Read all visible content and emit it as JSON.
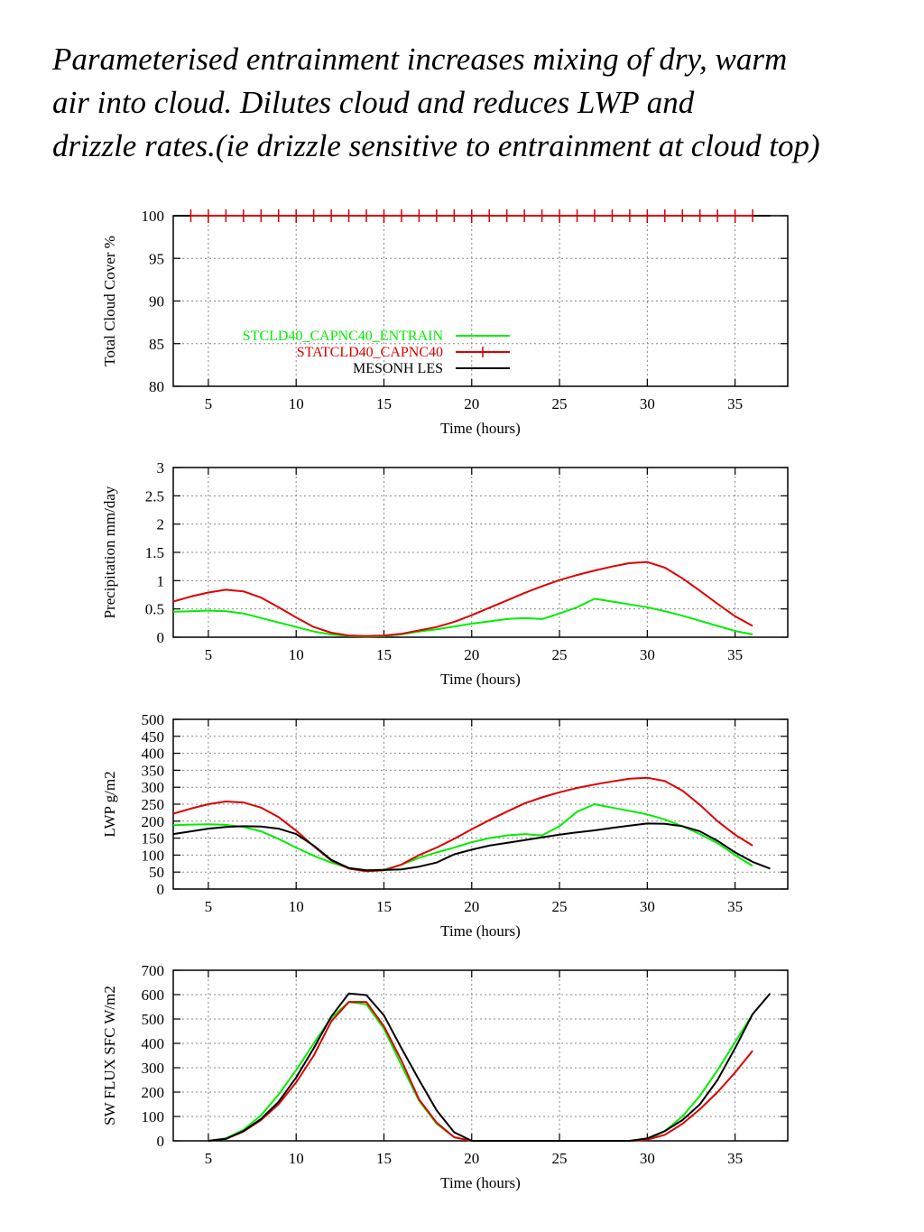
{
  "caption": {
    "line1": "Parameterised entrainment increases mixing of dry, warm",
    "line2": "air into cloud. Dilutes cloud and reduces LWP and",
    "line3": "drizzle rates.(ie drizzle sensitive to entrainment at cloud top)"
  },
  "colors": {
    "entrain": "#00ee00",
    "statcld": "#dd0000",
    "les": "#000000",
    "grid": "#888888"
  },
  "chart_data": [
    {
      "type": "line",
      "ylabel": "Total Cloud Cover %",
      "xlabel": "Time (hours)",
      "xlim": [
        3,
        38
      ],
      "ylim": [
        80,
        100
      ],
      "xticks": [
        5,
        10,
        15,
        20,
        25,
        30,
        35
      ],
      "yticks": [
        80,
        85,
        90,
        95,
        100
      ],
      "grid": true,
      "legend": {
        "position": "left-middle",
        "entries": [
          {
            "series": "STCLD40_CAPNC40_ENTRAIN",
            "color": "#00ee00",
            "marker": false
          },
          {
            "series": "STATCLD40_CAPNC40",
            "color": "#dd0000",
            "marker": true
          },
          {
            "series": "MESONH LES",
            "color": "#000000",
            "marker": false
          }
        ]
      },
      "series": [
        {
          "name": "STCLD40_CAPNC40_ENTRAIN",
          "color": "#00ee00",
          "x": [
            3,
            37
          ],
          "y": [
            100,
            100
          ]
        },
        {
          "name": "MESONH LES",
          "color": "#000000",
          "x": [
            3,
            37
          ],
          "y": [
            100,
            100
          ]
        },
        {
          "name": "STATCLD40_CAPNC40",
          "color": "#dd0000",
          "marker": "plus",
          "x": [
            4,
            5,
            6,
            7,
            8,
            9,
            10,
            11,
            12,
            13,
            14,
            15,
            16,
            17,
            18,
            19,
            20,
            21,
            22,
            23,
            24,
            25,
            26,
            27,
            28,
            29,
            30,
            31,
            32,
            33,
            34,
            35,
            36
          ],
          "y": [
            100,
            100,
            100,
            100,
            100,
            100,
            100,
            100,
            100,
            100,
            100,
            100,
            100,
            100,
            100,
            100,
            100,
            100,
            100,
            100,
            100,
            100,
            100,
            100,
            100,
            100,
            100,
            100,
            100,
            100,
            100,
            100,
            100
          ]
        }
      ]
    },
    {
      "type": "line",
      "ylabel": "Precipitation mm/day",
      "xlabel": "Time (hours)",
      "xlim": [
        3,
        38
      ],
      "ylim": [
        0,
        3
      ],
      "xticks": [
        5,
        10,
        15,
        20,
        25,
        30,
        35
      ],
      "yticks": [
        0,
        0.5,
        1,
        1.5,
        2,
        2.5,
        3
      ],
      "grid": true,
      "series": [
        {
          "name": "STCLD40_CAPNC40_ENTRAIN",
          "color": "#00ee00",
          "x": [
            3,
            4,
            5,
            6,
            7,
            8,
            9,
            10,
            11,
            12,
            13,
            14,
            15,
            16,
            17,
            18,
            19,
            20,
            21,
            22,
            23,
            24,
            25,
            26,
            27,
            28,
            29,
            30,
            31,
            32,
            33,
            34,
            35,
            36
          ],
          "y": [
            0.45,
            0.46,
            0.47,
            0.46,
            0.42,
            0.34,
            0.26,
            0.18,
            0.1,
            0.05,
            0.02,
            0.01,
            0.02,
            0.05,
            0.1,
            0.14,
            0.19,
            0.24,
            0.28,
            0.32,
            0.34,
            0.32,
            0.42,
            0.53,
            0.68,
            0.63,
            0.58,
            0.53,
            0.46,
            0.38,
            0.29,
            0.2,
            0.11,
            0.05
          ]
        },
        {
          "name": "STATCLD40_CAPNC40",
          "color": "#dd0000",
          "x": [
            3,
            4,
            5,
            6,
            7,
            8,
            9,
            10,
            11,
            12,
            13,
            14,
            15,
            16,
            17,
            18,
            19,
            20,
            21,
            22,
            23,
            24,
            25,
            26,
            27,
            28,
            29,
            30,
            31,
            32,
            33,
            34,
            35,
            36
          ],
          "y": [
            0.63,
            0.72,
            0.79,
            0.84,
            0.81,
            0.7,
            0.53,
            0.35,
            0.18,
            0.08,
            0.03,
            0.02,
            0.03,
            0.06,
            0.12,
            0.18,
            0.27,
            0.39,
            0.52,
            0.65,
            0.78,
            0.9,
            1.01,
            1.1,
            1.18,
            1.25,
            1.31,
            1.33,
            1.23,
            1.04,
            0.82,
            0.59,
            0.37,
            0.2
          ]
        }
      ]
    },
    {
      "type": "line",
      "ylabel": "LWP g/m2",
      "xlabel": "Time (hours)",
      "xlim": [
        3,
        38
      ],
      "ylim": [
        0,
        500
      ],
      "xticks": [
        5,
        10,
        15,
        20,
        25,
        30,
        35
      ],
      "yticks": [
        0,
        50,
        100,
        150,
        200,
        250,
        300,
        350,
        400,
        450,
        500
      ],
      "grid": true,
      "series": [
        {
          "name": "STCLD40_CAPNC40_ENTRAIN",
          "color": "#00ee00",
          "x": [
            3,
            4,
            5,
            6,
            7,
            8,
            9,
            10,
            11,
            12,
            13,
            14,
            15,
            16,
            17,
            18,
            19,
            20,
            21,
            22,
            23,
            24,
            25,
            26,
            27,
            28,
            29,
            30,
            31,
            32,
            33,
            34,
            35,
            36
          ],
          "y": [
            188,
            190,
            191,
            189,
            183,
            170,
            148,
            122,
            98,
            78,
            62,
            55,
            57,
            72,
            92,
            108,
            122,
            138,
            150,
            158,
            162,
            158,
            185,
            228,
            250,
            240,
            230,
            220,
            205,
            185,
            162,
            135,
            100,
            68
          ]
        },
        {
          "name": "STATCLD40_CAPNC40",
          "color": "#dd0000",
          "x": [
            3,
            4,
            5,
            6,
            7,
            8,
            9,
            10,
            11,
            12,
            13,
            14,
            15,
            16,
            17,
            18,
            19,
            20,
            21,
            22,
            23,
            24,
            25,
            26,
            27,
            28,
            29,
            30,
            31,
            32,
            33,
            34,
            35,
            36
          ],
          "y": [
            222,
            237,
            250,
            258,
            255,
            240,
            212,
            172,
            126,
            84,
            60,
            52,
            55,
            72,
            100,
            122,
            148,
            176,
            203,
            228,
            252,
            270,
            285,
            298,
            308,
            317,
            325,
            328,
            318,
            290,
            248,
            200,
            160,
            128
          ]
        },
        {
          "name": "MESONH LES",
          "color": "#000000",
          "x": [
            3,
            4,
            5,
            6,
            7,
            8,
            9,
            10,
            11,
            12,
            13,
            14,
            15,
            16,
            17,
            18,
            19,
            20,
            21,
            22,
            23,
            24,
            25,
            26,
            27,
            28,
            29,
            30,
            31,
            32,
            33,
            34,
            35,
            36,
            37
          ],
          "y": [
            162,
            170,
            178,
            183,
            185,
            184,
            178,
            162,
            128,
            86,
            62,
            55,
            56,
            58,
            66,
            78,
            102,
            116,
            128,
            136,
            144,
            152,
            160,
            167,
            173,
            180,
            187,
            193,
            192,
            185,
            170,
            142,
            108,
            80,
            60
          ]
        }
      ]
    },
    {
      "type": "line",
      "ylabel": "SW FLUX SFC W/m2",
      "xlabel": "Time (hours)",
      "xlim": [
        3,
        38
      ],
      "ylim": [
        0,
        700
      ],
      "xticks": [
        5,
        10,
        15,
        20,
        25,
        30,
        35
      ],
      "yticks": [
        0,
        100,
        200,
        300,
        400,
        500,
        600,
        700
      ],
      "grid": true,
      "series": [
        {
          "name": "STCLD40_CAPNC40_ENTRAIN",
          "color": "#00ee00",
          "x": [
            5,
            6,
            7,
            8,
            9,
            10,
            11,
            12,
            13,
            14,
            15,
            16,
            17,
            18,
            19,
            20,
            29,
            30,
            31,
            32,
            33,
            34,
            35,
            36
          ],
          "y": [
            0,
            10,
            45,
            105,
            190,
            290,
            400,
            505,
            570,
            560,
            460,
            310,
            165,
            70,
            15,
            0,
            0,
            5,
            40,
            100,
            185,
            290,
            405,
            520
          ]
        },
        {
          "name": "STATCLD40_CAPNC40",
          "color": "#dd0000",
          "x": [
            5,
            6,
            7,
            8,
            9,
            10,
            11,
            12,
            13,
            14,
            15,
            16,
            17,
            18,
            19,
            20,
            29,
            30,
            31,
            32,
            33,
            34,
            35,
            36
          ],
          "y": [
            0,
            8,
            38,
            85,
            150,
            240,
            350,
            490,
            570,
            570,
            470,
            330,
            170,
            75,
            15,
            0,
            0,
            5,
            25,
            70,
            130,
            200,
            280,
            370
          ]
        },
        {
          "name": "MESONH LES",
          "color": "#000000",
          "x": [
            5,
            6,
            7,
            8,
            9,
            10,
            11,
            12,
            13,
            14,
            15,
            16,
            17,
            18,
            19,
            20,
            29,
            30,
            31,
            32,
            33,
            34,
            35,
            36,
            37
          ],
          "y": [
            0,
            8,
            40,
            90,
            160,
            260,
            380,
            510,
            605,
            598,
            515,
            380,
            250,
            125,
            35,
            0,
            0,
            10,
            40,
            85,
            150,
            250,
            380,
            520,
            605
          ]
        }
      ]
    }
  ]
}
